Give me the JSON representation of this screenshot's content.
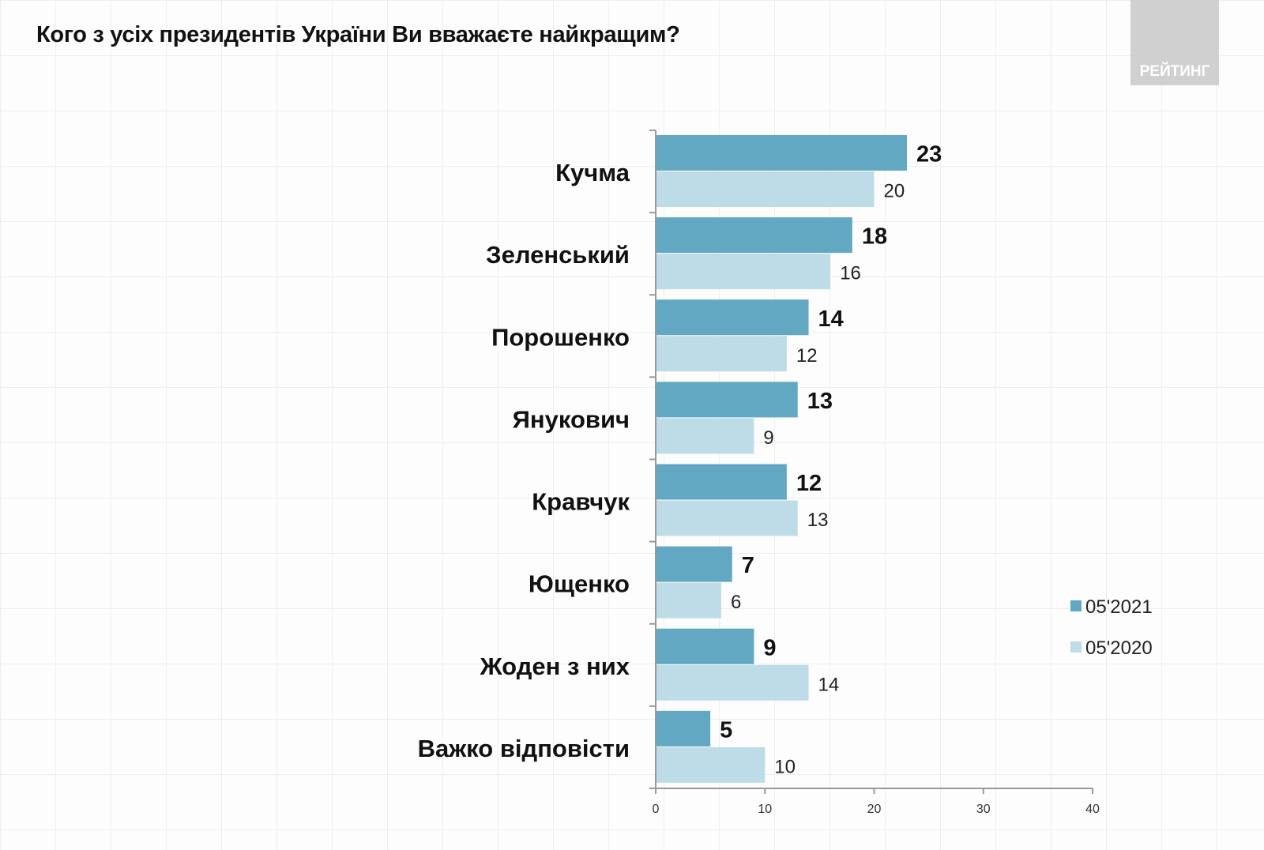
{
  "chart_data": {
    "type": "bar",
    "orientation": "horizontal",
    "title": "Кого з усіх президентів України Ви вважаєте найкращим?",
    "categories": [
      "Кучма",
      "Зеленський",
      "Порошенко",
      "Янукович",
      "Кравчук",
      "Ющенко",
      "Жоден з них",
      "Важко відповісти"
    ],
    "series": [
      {
        "name": "05'2021",
        "color": "#62a8c3",
        "values": [
          23,
          18,
          14,
          13,
          12,
          7,
          9,
          5
        ]
      },
      {
        "name": "05'2020",
        "color": "#bddce7",
        "values": [
          20,
          16,
          12,
          9,
          13,
          6,
          14,
          10
        ]
      }
    ],
    "xlim": [
      0,
      40
    ],
    "xticks": [
      0,
      10,
      20,
      30,
      40
    ],
    "legend": "right",
    "grid": false
  },
  "logo": "РЕЙТИНГ"
}
